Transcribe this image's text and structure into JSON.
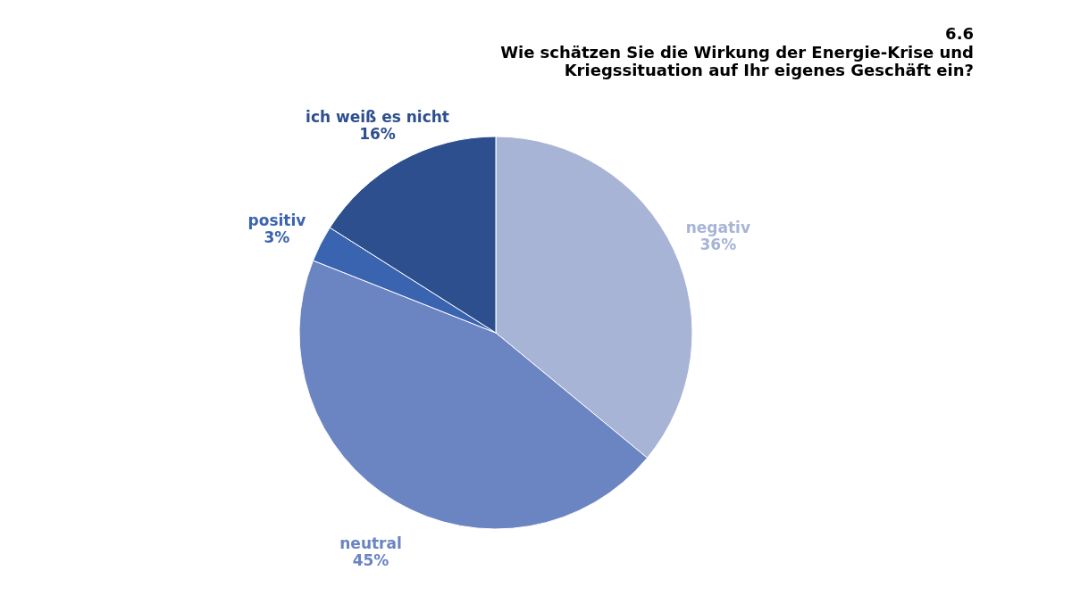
{
  "chart_data": {
    "type": "pie",
    "title": "6.6",
    "subtitle": "Wie schätzen Sie die Wirkung der Energie-Krise und Kriegssituation auf Ihr eigenes Geschäft ein?",
    "categories": [
      "negativ",
      "neutral",
      "positiv",
      "ich weiß es nicht"
    ],
    "values": [
      36,
      45,
      3,
      16
    ],
    "value_labels": [
      "36%",
      "45%",
      "3%",
      "16%"
    ],
    "colors": [
      "#a8b4d6",
      "#6b84c2",
      "#3a63b0",
      "#2d4f8e"
    ],
    "legend": false
  }
}
